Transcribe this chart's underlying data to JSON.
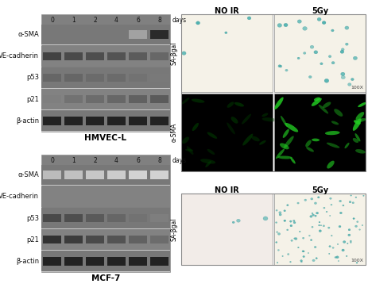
{
  "background_color": "#ffffff",
  "hmvec_bands": [
    {
      "label": "α-SMA",
      "intensities": [
        0.0,
        0.0,
        0.0,
        0.0,
        0.35,
        0.85
      ]
    },
    {
      "label": "VE-cadherin",
      "intensities": [
        0.75,
        0.72,
        0.7,
        0.68,
        0.65,
        0.6
      ]
    },
    {
      "label": "p53",
      "intensities": [
        0.6,
        0.6,
        0.58,
        0.58,
        0.55,
        0.52
      ]
    },
    {
      "label": "p21",
      "intensities": [
        0.5,
        0.55,
        0.58,
        0.6,
        0.62,
        0.65
      ]
    },
    {
      "label": "β-actin",
      "intensities": [
        0.88,
        0.88,
        0.88,
        0.88,
        0.88,
        0.88
      ]
    }
  ],
  "mcf7_bands": [
    {
      "label": "α-SMA",
      "intensities": [
        0.25,
        0.22,
        0.2,
        0.18,
        0.15,
        0.15
      ]
    },
    {
      "label": "VE-cadherin",
      "intensities": [
        0.0,
        0.0,
        0.0,
        0.0,
        0.0,
        0.0
      ]
    },
    {
      "label": "p53",
      "intensities": [
        0.72,
        0.7,
        0.65,
        0.6,
        0.55,
        0.5
      ]
    },
    {
      "label": "p21",
      "intensities": [
        0.82,
        0.78,
        0.72,
        0.68,
        0.62,
        0.58
      ]
    },
    {
      "label": "β-actin",
      "intensities": [
        0.88,
        0.88,
        0.88,
        0.88,
        0.88,
        0.88
      ]
    }
  ],
  "days": [
    "0",
    "1",
    "2",
    "4",
    "6",
    "8",
    "days"
  ],
  "hmvec_title": "HMVEC-L",
  "mcf7_title": "MCF-7",
  "col_labels_top": [
    "NO IR",
    "5Gy"
  ],
  "col_labels_bot": [
    "NO IR",
    "5Gy"
  ],
  "row_labels_top": [
    "SA-βgal",
    "α-SMA"
  ],
  "row_label_bot": "SA-βgal",
  "scale_label": "100X",
  "colors": {
    "white": "#ffffff",
    "blot_bg_dark": "#808080",
    "blot_bg_light": "#b8b8b8",
    "blot_row_sep": "#c8c8c8",
    "band_color": "#282828",
    "label_color": "#111111",
    "gray_text": "#444444",
    "teal": "#3aaaaa",
    "teal_dark": "#2a8888",
    "green_bright": "#22ee22",
    "green_dim": "#003300",
    "green_medium": "#004400",
    "black": "#000000",
    "cream_bg": "#f5f2e8",
    "pink_cream": "#f2ece8",
    "panel_outline": "#888888"
  },
  "fig_w": 4.64,
  "fig_h": 3.77
}
